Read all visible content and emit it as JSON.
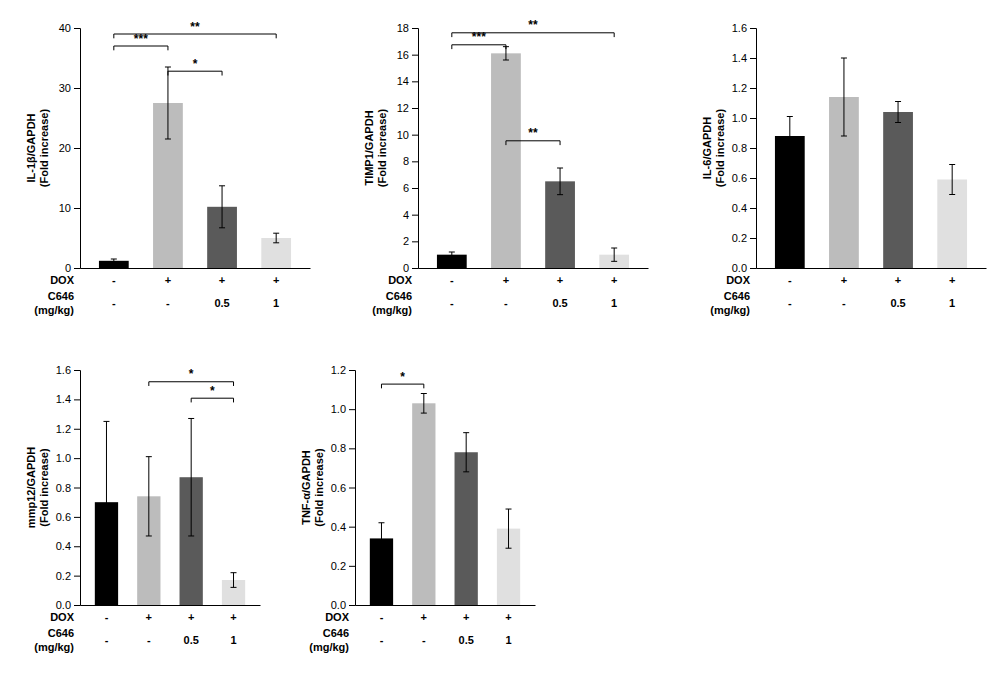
{
  "chart_data": [
    {
      "type": "bar",
      "ylabel": "IL-1β/GAPDH\n(Fold increase)",
      "categories": [
        null,
        null,
        null,
        null
      ],
      "values": [
        1.2,
        27.5,
        10.2,
        5.0
      ],
      "errors": [
        0.3,
        6.0,
        3.5,
        0.8
      ],
      "colors": [
        "#000000",
        "#bcbcbc",
        "#5a5a5a",
        "#e0e0e0"
      ],
      "ylim": [
        0,
        40
      ],
      "yticks": [
        0,
        10,
        20,
        30,
        40
      ],
      "grid": false,
      "annotations": [
        {
          "text": "***",
          "from": 0,
          "to": 1,
          "y": 37
        },
        {
          "text": "*",
          "from": 1,
          "to": 2,
          "y": 32.8
        },
        {
          "text": "**",
          "from": 0,
          "to": 3,
          "y": 39
        }
      ],
      "x_rows": [
        {
          "name": "DOX",
          "labels": [
            "-",
            "+",
            "+",
            "+"
          ]
        },
        {
          "name": "C646\n(mg/kg)",
          "labels": [
            "-",
            "-",
            "0.5",
            "1"
          ]
        }
      ]
    },
    {
      "type": "bar",
      "ylabel": "TIMP1/GAPDH\n(Fold increase)",
      "categories": [
        null,
        null,
        null,
        null
      ],
      "values": [
        1.0,
        16.1,
        6.5,
        1.0
      ],
      "errors": [
        0.2,
        0.5,
        1.0,
        0.5
      ],
      "colors": [
        "#000000",
        "#bcbcbc",
        "#5a5a5a",
        "#e0e0e0"
      ],
      "ylim": [
        0,
        18
      ],
      "yticks": [
        0,
        2,
        4,
        6,
        8,
        10,
        12,
        14,
        16,
        18
      ],
      "grid": false,
      "annotations": [
        {
          "text": "***",
          "from": 0,
          "to": 1,
          "y": 16.74
        },
        {
          "text": "**",
          "from": 1,
          "to": 2,
          "y": 9.54
        },
        {
          "text": "**",
          "from": 0,
          "to": 3,
          "y": 17.64
        }
      ],
      "x_rows": [
        {
          "name": "DOX",
          "labels": [
            "-",
            "+",
            "+",
            "+"
          ]
        },
        {
          "name": "C646\n(mg/kg)",
          "labels": [
            "-",
            "-",
            "0.5",
            "1"
          ]
        }
      ]
    },
    {
      "type": "bar",
      "ylabel": "IL-6/GAPDH\n(Fold increase)",
      "categories": [
        null,
        null,
        null,
        null
      ],
      "values": [
        0.88,
        1.14,
        1.04,
        0.59
      ],
      "errors": [
        0.13,
        0.26,
        0.07,
        0.1
      ],
      "colors": [
        "#000000",
        "#bcbcbc",
        "#5a5a5a",
        "#e0e0e0"
      ],
      "ylim": [
        0,
        1.6
      ],
      "yticks": [
        {
          "value": 0,
          "label": "0.0"
        },
        0.2,
        0.4,
        0.6,
        0.8,
        {
          "value": 1,
          "label": "1.0"
        },
        1.2,
        1.4,
        1.6
      ],
      "grid": false,
      "annotations": [],
      "x_rows": [
        {
          "name": "DOX",
          "labels": [
            "-",
            "+",
            "+",
            "+"
          ]
        },
        {
          "name": "C646\n(mg/kg)",
          "labels": [
            "-",
            "-",
            "0.5",
            "1"
          ]
        }
      ]
    },
    {
      "type": "bar",
      "ylabel": "mmp12/GAPDH\n(Fold increase)",
      "categories": [
        null,
        null,
        null,
        null
      ],
      "values": [
        0.7,
        0.74,
        0.87,
        0.17
      ],
      "errors": [
        0.55,
        0.27,
        0.4,
        0.05
      ],
      "colors": [
        "#000000",
        "#bcbcbc",
        "#5a5a5a",
        "#e0e0e0"
      ],
      "ylim": [
        0,
        1.6
      ],
      "yticks": [
        {
          "value": 0,
          "label": "0.0"
        },
        0.2,
        0.4,
        0.6,
        0.8,
        {
          "value": 1,
          "label": "1.0"
        },
        1.2,
        1.4,
        1.6
      ],
      "grid": false,
      "annotations": [
        {
          "text": "*",
          "from": 1,
          "to": 3,
          "y": 1.52
        },
        {
          "text": "*",
          "from": 2,
          "to": 3,
          "y": 1.408
        }
      ],
      "x_rows": [
        {
          "name": "DOX",
          "labels": [
            "-",
            "+",
            "+",
            "+"
          ]
        },
        {
          "name": "C646\n(mg/kg)",
          "labels": [
            "-",
            "-",
            "0.5",
            "1"
          ]
        }
      ]
    },
    {
      "type": "bar",
      "ylabel": "TNF-α/GAPDH\n(Fold increase)",
      "categories": [
        null,
        null,
        null,
        null
      ],
      "values": [
        0.34,
        1.03,
        0.78,
        0.39
      ],
      "errors": [
        0.08,
        0.05,
        0.1,
        0.1
      ],
      "colors": [
        "#000000",
        "#bcbcbc",
        "#5a5a5a",
        "#e0e0e0"
      ],
      "ylim": [
        0,
        1.2
      ],
      "yticks": [
        {
          "value": 0,
          "label": "0.0"
        },
        0.2,
        0.4,
        0.6,
        0.8,
        {
          "value": 1,
          "label": "1.0"
        },
        1.2
      ],
      "grid": false,
      "annotations": [
        {
          "text": "*",
          "from": 0,
          "to": 1,
          "y": 1.128
        }
      ],
      "x_rows": [
        {
          "name": "DOX",
          "labels": [
            "-",
            "+",
            "+",
            "+"
          ]
        },
        {
          "name": "C646\n(mg/kg)",
          "labels": [
            "-",
            "-",
            "0.5",
            "1"
          ]
        }
      ]
    }
  ]
}
